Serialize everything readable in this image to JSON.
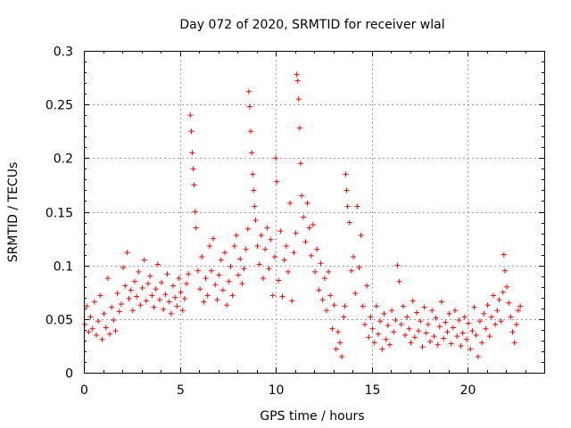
{
  "chart_data": {
    "type": "scatter",
    "title": "Day 072 of 2020, SRMTID for receiver wlal",
    "xlabel": "GPS time / hours",
    "ylabel": "SRMTID / TECUs",
    "xlim": [
      0,
      24
    ],
    "ylim": [
      0,
      0.3
    ],
    "xticks": [
      0,
      5,
      10,
      15,
      20
    ],
    "xtick_labels": [
      "0",
      "5",
      "10",
      "15",
      "20"
    ],
    "yticks": [
      0,
      0.05,
      0.1,
      0.15,
      0.2,
      0.25,
      0.3
    ],
    "ytick_labels": [
      "0",
      "0.05",
      "0.1",
      "0.15",
      "0.2",
      "0.25",
      "0.3"
    ],
    "grid": true,
    "marker": "+",
    "color": "#ff0000",
    "series": [
      {
        "name": "SRMTID",
        "x": [
          0.05,
          0.15,
          0.25,
          0.35,
          0.45,
          0.55,
          0.65,
          0.75,
          0.85,
          0.95,
          1.05,
          1.15,
          1.25,
          1.35,
          1.45,
          1.55,
          1.65,
          1.75,
          1.85,
          1.95,
          2.05,
          2.15,
          2.25,
          2.35,
          2.45,
          2.55,
          2.65,
          2.75,
          2.85,
          2.95,
          3.05,
          3.15,
          3.25,
          3.35,
          3.45,
          3.55,
          3.65,
          3.75,
          3.85,
          3.95,
          4.05,
          4.15,
          4.25,
          4.35,
          4.45,
          4.55,
          4.65,
          4.75,
          4.85,
          4.95,
          5.05,
          5.15,
          5.25,
          5.35,
          5.45,
          5.55,
          5.6,
          5.65,
          5.7,
          5.75,
          5.8,
          5.85,
          5.95,
          6.05,
          6.15,
          6.25,
          6.35,
          6.45,
          6.55,
          6.65,
          6.75,
          6.85,
          6.95,
          7.05,
          7.15,
          7.25,
          7.35,
          7.45,
          7.55,
          7.65,
          7.75,
          7.85,
          7.95,
          8.05,
          8.15,
          8.25,
          8.35,
          8.45,
          8.55,
          8.6,
          8.65,
          8.7,
          8.75,
          8.8,
          8.85,
          8.9,
          8.95,
          9.05,
          9.15,
          9.25,
          9.35,
          9.45,
          9.55,
          9.65,
          9.75,
          9.85,
          9.95,
          10.0,
          10.05,
          10.15,
          10.25,
          10.35,
          10.45,
          10.55,
          10.65,
          10.75,
          10.85,
          10.95,
          11.05,
          11.1,
          11.15,
          11.2,
          11.25,
          11.3,
          11.35,
          11.45,
          11.55,
          11.65,
          11.75,
          11.85,
          11.95,
          12.05,
          12.15,
          12.25,
          12.35,
          12.45,
          12.55,
          12.65,
          12.75,
          12.85,
          12.95,
          13.05,
          13.15,
          13.25,
          13.35,
          13.45,
          13.55,
          13.6,
          13.65,
          13.7,
          13.75,
          13.85,
          13.95,
          14.05,
          14.15,
          14.25,
          14.35,
          14.45,
          14.55,
          14.65,
          14.75,
          14.85,
          14.95,
          15.05,
          15.15,
          15.25,
          15.35,
          15.45,
          15.55,
          15.65,
          15.75,
          15.85,
          15.95,
          16.05,
          16.15,
          16.25,
          16.35,
          16.45,
          16.55,
          16.65,
          16.75,
          16.85,
          16.95,
          17.05,
          17.15,
          17.25,
          17.35,
          17.45,
          17.55,
          17.65,
          17.75,
          17.85,
          17.95,
          18.05,
          18.15,
          18.25,
          18.35,
          18.45,
          18.55,
          18.65,
          18.75,
          18.85,
          18.95,
          19.05,
          19.15,
          19.25,
          19.35,
          19.45,
          19.55,
          19.65,
          19.75,
          19.85,
          19.95,
          20.05,
          20.15,
          20.25,
          20.35,
          20.45,
          20.55,
          20.65,
          20.75,
          20.85,
          20.95,
          21.05,
          21.15,
          21.25,
          21.35,
          21.45,
          21.55,
          21.65,
          21.75,
          21.85,
          21.9,
          21.95,
          22.05,
          22.15,
          22.25,
          22.35,
          22.45,
          22.55,
          22.65,
          22.75
        ],
        "y": [
          0.045,
          0.062,
          0.038,
          0.052,
          0.041,
          0.066,
          0.035,
          0.048,
          0.072,
          0.031,
          0.055,
          0.042,
          0.088,
          0.036,
          0.061,
          0.049,
          0.039,
          0.074,
          0.057,
          0.064,
          0.098,
          0.081,
          0.112,
          0.069,
          0.077,
          0.058,
          0.085,
          0.071,
          0.094,
          0.063,
          0.079,
          0.105,
          0.067,
          0.083,
          0.09,
          0.072,
          0.061,
          0.078,
          0.101,
          0.068,
          0.084,
          0.059,
          0.073,
          0.092,
          0.066,
          0.055,
          0.081,
          0.07,
          0.062,
          0.088,
          0.075,
          0.058,
          0.069,
          0.083,
          0.092,
          0.24,
          0.225,
          0.205,
          0.19,
          0.175,
          0.15,
          0.135,
          0.095,
          0.078,
          0.108,
          0.066,
          0.088,
          0.072,
          0.118,
          0.095,
          0.125,
          0.082,
          0.068,
          0.091,
          0.105,
          0.077,
          0.112,
          0.063,
          0.085,
          0.099,
          0.072,
          0.118,
          0.128,
          0.091,
          0.106,
          0.083,
          0.097,
          0.115,
          0.134,
          0.262,
          0.248,
          0.225,
          0.205,
          0.185,
          0.17,
          0.155,
          0.142,
          0.118,
          0.101,
          0.128,
          0.088,
          0.115,
          0.135,
          0.097,
          0.124,
          0.072,
          0.108,
          0.2,
          0.178,
          0.086,
          0.132,
          0.071,
          0.105,
          0.118,
          0.094,
          0.158,
          0.067,
          0.112,
          0.13,
          0.278,
          0.272,
          0.255,
          0.228,
          0.195,
          0.165,
          0.145,
          0.122,
          0.158,
          0.135,
          0.109,
          0.138,
          0.094,
          0.115,
          0.077,
          0.102,
          0.068,
          0.088,
          0.058,
          0.094,
          0.072,
          0.041,
          0.063,
          0.022,
          0.038,
          0.028,
          0.015,
          0.052,
          0.062,
          0.185,
          0.17,
          0.155,
          0.14,
          0.095,
          0.108,
          0.074,
          0.155,
          0.098,
          0.128,
          0.062,
          0.045,
          0.081,
          0.033,
          0.052,
          0.041,
          0.028,
          0.062,
          0.036,
          0.048,
          0.022,
          0.055,
          0.031,
          0.044,
          0.026,
          0.058,
          0.038,
          0.049,
          0.1,
          0.085,
          0.045,
          0.062,
          0.035,
          0.052,
          0.041,
          0.028,
          0.067,
          0.033,
          0.056,
          0.039,
          0.048,
          0.024,
          0.061,
          0.037,
          0.045,
          0.029,
          0.058,
          0.034,
          0.051,
          0.026,
          0.043,
          0.066,
          0.032,
          0.047,
          0.038,
          0.055,
          0.027,
          0.042,
          0.058,
          0.034,
          0.049,
          0.025,
          0.037,
          0.052,
          0.031,
          0.046,
          0.022,
          0.039,
          0.061,
          0.035,
          0.015,
          0.048,
          0.028,
          0.055,
          0.041,
          0.063,
          0.034,
          0.052,
          0.072,
          0.045,
          0.058,
          0.068,
          0.048,
          0.075,
          0.11,
          0.095,
          0.08,
          0.065,
          0.052,
          0.038,
          0.028,
          0.045,
          0.058,
          0.062
        ]
      }
    ]
  }
}
